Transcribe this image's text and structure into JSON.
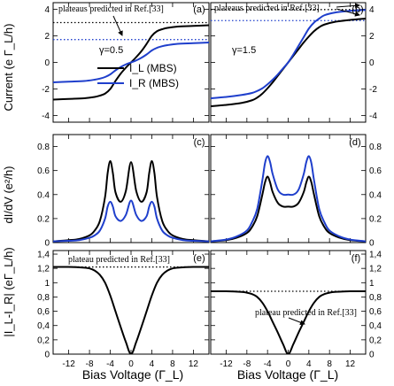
{
  "figure": {
    "y_labels": {
      "row1": "Current (e Γ_L/h)",
      "row2": "dI/dV (e²/h)",
      "row3": "|I_L-I_R| (eΓ_L/h)"
    },
    "x_label": "Bias Voltage (Γ_L)",
    "legend": [
      {
        "name": "I_L (MBS)",
        "color": "#000000"
      },
      {
        "name": "I_R (MBS)",
        "color": "#1f3fcc"
      }
    ]
  },
  "chart_data": [
    {
      "panel": "(a)",
      "type": "line",
      "xlim": [
        -15,
        15
      ],
      "ylim": [
        -4.5,
        4.5
      ],
      "xticks": [
        -12,
        -8,
        -4,
        0,
        4,
        8,
        12
      ],
      "yticks": [
        -4,
        -2,
        0,
        2,
        4
      ],
      "param_text": "γ=0.5",
      "annotation": "plateaus predicted in Ref.[33]",
      "reference_lines": [
        {
          "y": 3.0,
          "color": "#000000"
        },
        {
          "y": 1.72,
          "color": "#1f3fcc"
        }
      ],
      "series": [
        {
          "name": "I_L (MBS)",
          "color": "#000000",
          "x": [
            -15,
            -12,
            -9,
            -7,
            -6,
            -5,
            -4,
            -3,
            -2,
            -1,
            0,
            1,
            2,
            3,
            4,
            5,
            6,
            7,
            9,
            12,
            15
          ],
          "y": [
            -2.8,
            -2.75,
            -2.7,
            -2.6,
            -2.5,
            -2.35,
            -2.0,
            -1.4,
            -0.85,
            -0.4,
            0,
            0.4,
            0.85,
            1.4,
            2.0,
            2.35,
            2.5,
            2.6,
            2.7,
            2.75,
            2.8
          ]
        },
        {
          "name": "I_R (MBS)",
          "color": "#1f3fcc",
          "x": [
            -15,
            -12,
            -9,
            -7,
            -6,
            -5,
            -4,
            -3,
            -2,
            -1,
            0,
            1,
            2,
            3,
            4,
            5,
            6,
            7,
            9,
            12,
            15
          ],
          "y": [
            -1.5,
            -1.45,
            -1.4,
            -1.3,
            -1.22,
            -1.1,
            -0.9,
            -0.6,
            -0.35,
            -0.15,
            0,
            0.15,
            0.35,
            0.6,
            0.9,
            1.1,
            1.22,
            1.3,
            1.4,
            1.45,
            1.5
          ]
        }
      ]
    },
    {
      "panel": "(b)",
      "type": "line",
      "xlim": [
        -15,
        15
      ],
      "ylim": [
        -4.5,
        4.5
      ],
      "xticks": [
        -12,
        -8,
        -4,
        0,
        4,
        8,
        12
      ],
      "yticks": [
        -4,
        -2,
        0,
        2,
        4
      ],
      "param_text": "γ=1.5",
      "annotation": "plateaus predicted in Ref.[33]",
      "reference_lines": [
        {
          "y": 3.98,
          "color": "#000000"
        },
        {
          "y": 3.15,
          "color": "#1f3fcc"
        }
      ],
      "series": [
        {
          "name": "I_L (MBS)",
          "color": "#000000",
          "x": [
            -15,
            -12,
            -9,
            -7,
            -6,
            -5,
            -4,
            -3,
            -2,
            -1,
            0,
            1,
            2,
            3,
            4,
            5,
            6,
            7,
            9,
            12,
            15
          ],
          "y": [
            -3.3,
            -3.2,
            -3.05,
            -2.85,
            -2.65,
            -2.35,
            -1.95,
            -1.5,
            -1.0,
            -0.5,
            0,
            0.5,
            1.0,
            1.5,
            1.95,
            2.35,
            2.65,
            2.85,
            3.05,
            3.2,
            3.3
          ]
        },
        {
          "name": "I_R (MBS)",
          "color": "#1f3fcc",
          "x": [
            -15,
            -12,
            -9,
            -7,
            -6,
            -5,
            -4,
            -3,
            -2,
            -1,
            0,
            1,
            2,
            3,
            4,
            5,
            6,
            7,
            9,
            12,
            15
          ],
          "y": [
            -2.7,
            -2.6,
            -2.45,
            -2.3,
            -2.15,
            -1.95,
            -1.65,
            -1.3,
            -0.9,
            -0.45,
            0,
            0.6,
            1.25,
            1.9,
            2.55,
            3.0,
            3.3,
            3.55,
            3.75,
            3.88,
            3.95
          ]
        }
      ]
    },
    {
      "panel": "(c)",
      "type": "line",
      "xlim": [
        -15,
        15
      ],
      "ylim": [
        0,
        0.9
      ],
      "xticks": [
        -12,
        -8,
        -4,
        0,
        4,
        8,
        12
      ],
      "yticks": [
        0,
        0.2,
        0.4,
        0.6,
        0.8
      ],
      "series": [
        {
          "name": "I_L (MBS)",
          "color": "#000000",
          "x": [
            -15,
            -12,
            -10,
            -8,
            -7,
            -6,
            -5,
            -4.5,
            -4,
            -3.5,
            -3,
            -2,
            -1,
            0,
            1,
            2,
            3,
            3.5,
            4,
            4.5,
            5,
            6,
            7,
            8,
            10,
            12,
            15
          ],
          "y": [
            0.01,
            0.02,
            0.03,
            0.06,
            0.1,
            0.18,
            0.38,
            0.58,
            0.68,
            0.58,
            0.42,
            0.34,
            0.43,
            0.67,
            0.43,
            0.34,
            0.42,
            0.58,
            0.68,
            0.58,
            0.38,
            0.18,
            0.1,
            0.06,
            0.03,
            0.02,
            0.01
          ]
        },
        {
          "name": "I_R (MBS)",
          "color": "#1f3fcc",
          "x": [
            -15,
            -12,
            -10,
            -8,
            -7,
            -6,
            -5,
            -4.5,
            -4,
            -3.5,
            -3,
            -2,
            -1,
            0,
            1,
            2,
            3,
            3.5,
            4,
            4.5,
            5,
            6,
            7,
            8,
            10,
            12,
            15
          ],
          "y": [
            0.01,
            0.015,
            0.02,
            0.04,
            0.06,
            0.1,
            0.2,
            0.3,
            0.34,
            0.3,
            0.22,
            0.18,
            0.23,
            0.35,
            0.23,
            0.18,
            0.22,
            0.3,
            0.34,
            0.3,
            0.2,
            0.1,
            0.06,
            0.04,
            0.02,
            0.015,
            0.01
          ]
        }
      ]
    },
    {
      "panel": "(d)",
      "type": "line",
      "xlim": [
        -15,
        15
      ],
      "ylim": [
        0,
        0.9
      ],
      "xticks": [
        -12,
        -8,
        -4,
        0,
        4,
        8,
        12
      ],
      "yticks": [
        0,
        0.2,
        0.4,
        0.6,
        0.8
      ],
      "series": [
        {
          "name": "I_L (MBS)",
          "color": "#000000",
          "x": [
            -15,
            -12,
            -10,
            -8,
            -7,
            -6,
            -5,
            -4.5,
            -4,
            -3.5,
            -3,
            -2,
            -1,
            0,
            1,
            2,
            3,
            3.5,
            4,
            4.5,
            5,
            6,
            7,
            8,
            10,
            12,
            15
          ],
          "y": [
            0.01,
            0.02,
            0.04,
            0.08,
            0.13,
            0.22,
            0.4,
            0.5,
            0.55,
            0.5,
            0.42,
            0.33,
            0.3,
            0.3,
            0.3,
            0.33,
            0.42,
            0.5,
            0.55,
            0.5,
            0.4,
            0.22,
            0.13,
            0.08,
            0.04,
            0.02,
            0.01
          ]
        },
        {
          "name": "I_R (MBS)",
          "color": "#1f3fcc",
          "x": [
            -15,
            -12,
            -10,
            -8,
            -7,
            -6,
            -5,
            -4.5,
            -4,
            -3.5,
            -3,
            -2,
            -1,
            0,
            1,
            2,
            3,
            3.5,
            4,
            4.5,
            5,
            6,
            7,
            8,
            10,
            12,
            15
          ],
          "y": [
            0.01,
            0.025,
            0.05,
            0.1,
            0.17,
            0.28,
            0.52,
            0.66,
            0.72,
            0.67,
            0.57,
            0.44,
            0.4,
            0.4,
            0.4,
            0.44,
            0.57,
            0.67,
            0.72,
            0.66,
            0.52,
            0.28,
            0.17,
            0.1,
            0.05,
            0.025,
            0.01
          ]
        }
      ]
    },
    {
      "panel": "(e)",
      "type": "line",
      "xlim": [
        -15,
        15
      ],
      "ylim": [
        0,
        1.45
      ],
      "xticks": [
        -12,
        -8,
        -4,
        0,
        4,
        8,
        12
      ],
      "yticks": [
        0,
        0.2,
        0.4,
        0.6,
        0.8,
        1,
        1.2,
        1.4
      ],
      "ytick_labels": [
        "0",
        "0,2",
        "0,4",
        "0,6",
        "0,8",
        "1",
        "1,2",
        "1,4"
      ],
      "annotation": "plateau predicted in Ref.[33]",
      "reference_lines": [
        {
          "y": 1.22,
          "color": "#000000"
        }
      ],
      "series": [
        {
          "name": "|I_L-I_R|",
          "color": "#000000",
          "x": [
            -15,
            -12,
            -9,
            -8,
            -7,
            -6,
            -5,
            -4,
            -3,
            -2,
            -1,
            0,
            1,
            2,
            3,
            4,
            5,
            6,
            7,
            8,
            9,
            12,
            15
          ],
          "y": [
            1.22,
            1.22,
            1.21,
            1.2,
            1.17,
            1.11,
            1.0,
            0.82,
            0.6,
            0.38,
            0.17,
            0,
            0.17,
            0.38,
            0.6,
            0.82,
            1.0,
            1.11,
            1.17,
            1.2,
            1.21,
            1.22,
            1.22
          ]
        }
      ]
    },
    {
      "panel": "(f)",
      "type": "line",
      "xlim": [
        -15,
        15
      ],
      "ylim": [
        0,
        1.45
      ],
      "xticks": [
        -12,
        -8,
        -4,
        0,
        4,
        8,
        12
      ],
      "yticks": [
        0,
        0.2,
        0.4,
        0.6,
        0.8,
        1,
        1.2,
        1.4
      ],
      "ytick_labels": [
        "0",
        "0,2",
        "0,4",
        "0,6",
        "0,8",
        "1",
        "1,2",
        "1,4"
      ],
      "annotation": "plateau predicted in Ref.[33]",
      "reference_lines": [
        {
          "y": 0.88,
          "color": "#000000"
        }
      ],
      "series": [
        {
          "name": "|I_L-I_R|",
          "color": "#000000",
          "x": [
            -15,
            -12,
            -9,
            -8,
            -7,
            -6,
            -5,
            -4,
            -3,
            -2,
            -1,
            0,
            1,
            2,
            3,
            4,
            5,
            6,
            7,
            8,
            9,
            12,
            15
          ],
          "y": [
            0.88,
            0.88,
            0.87,
            0.86,
            0.84,
            0.8,
            0.72,
            0.6,
            0.45,
            0.3,
            0.14,
            0,
            0.14,
            0.3,
            0.45,
            0.6,
            0.72,
            0.8,
            0.84,
            0.86,
            0.87,
            0.88,
            0.88
          ]
        }
      ]
    }
  ]
}
